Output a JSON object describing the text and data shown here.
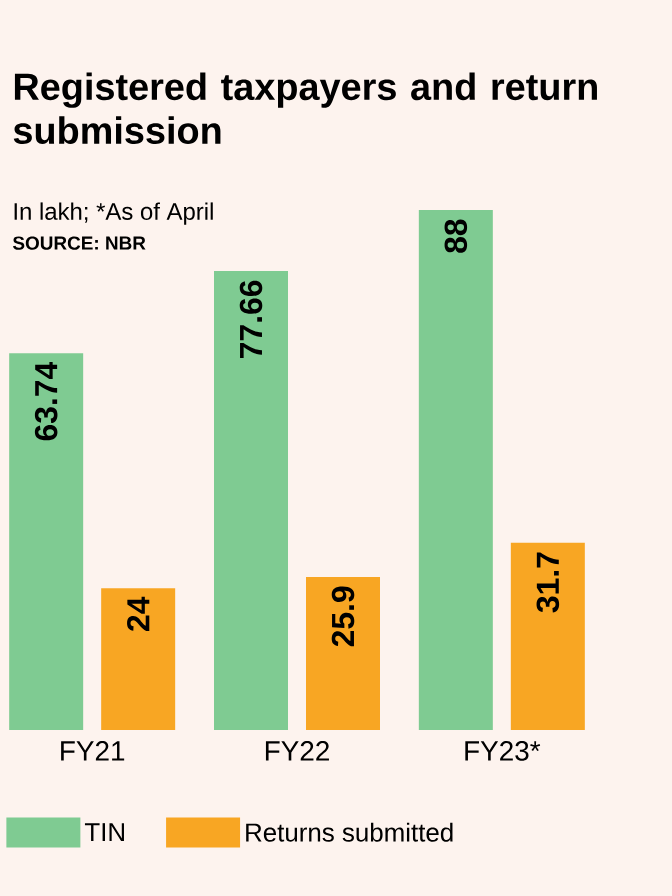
{
  "chart_data": {
    "type": "bar",
    "title": "Registered taxpayers and return submission",
    "subtitle": "In lakh; *As of April",
    "annotations": [
      "SOURCE: NBR"
    ],
    "categories": [
      "FY21",
      "FY22",
      "FY23*"
    ],
    "series": [
      {
        "name": "TIN",
        "color": "#7fcb92",
        "values": [
          63.74,
          77.66,
          88
        ]
      },
      {
        "name": "Returns submitted",
        "color": "#f8a623",
        "values": [
          24,
          25.9,
          31.7
        ]
      }
    ],
    "data_labels": true,
    "legend": "bottom"
  }
}
